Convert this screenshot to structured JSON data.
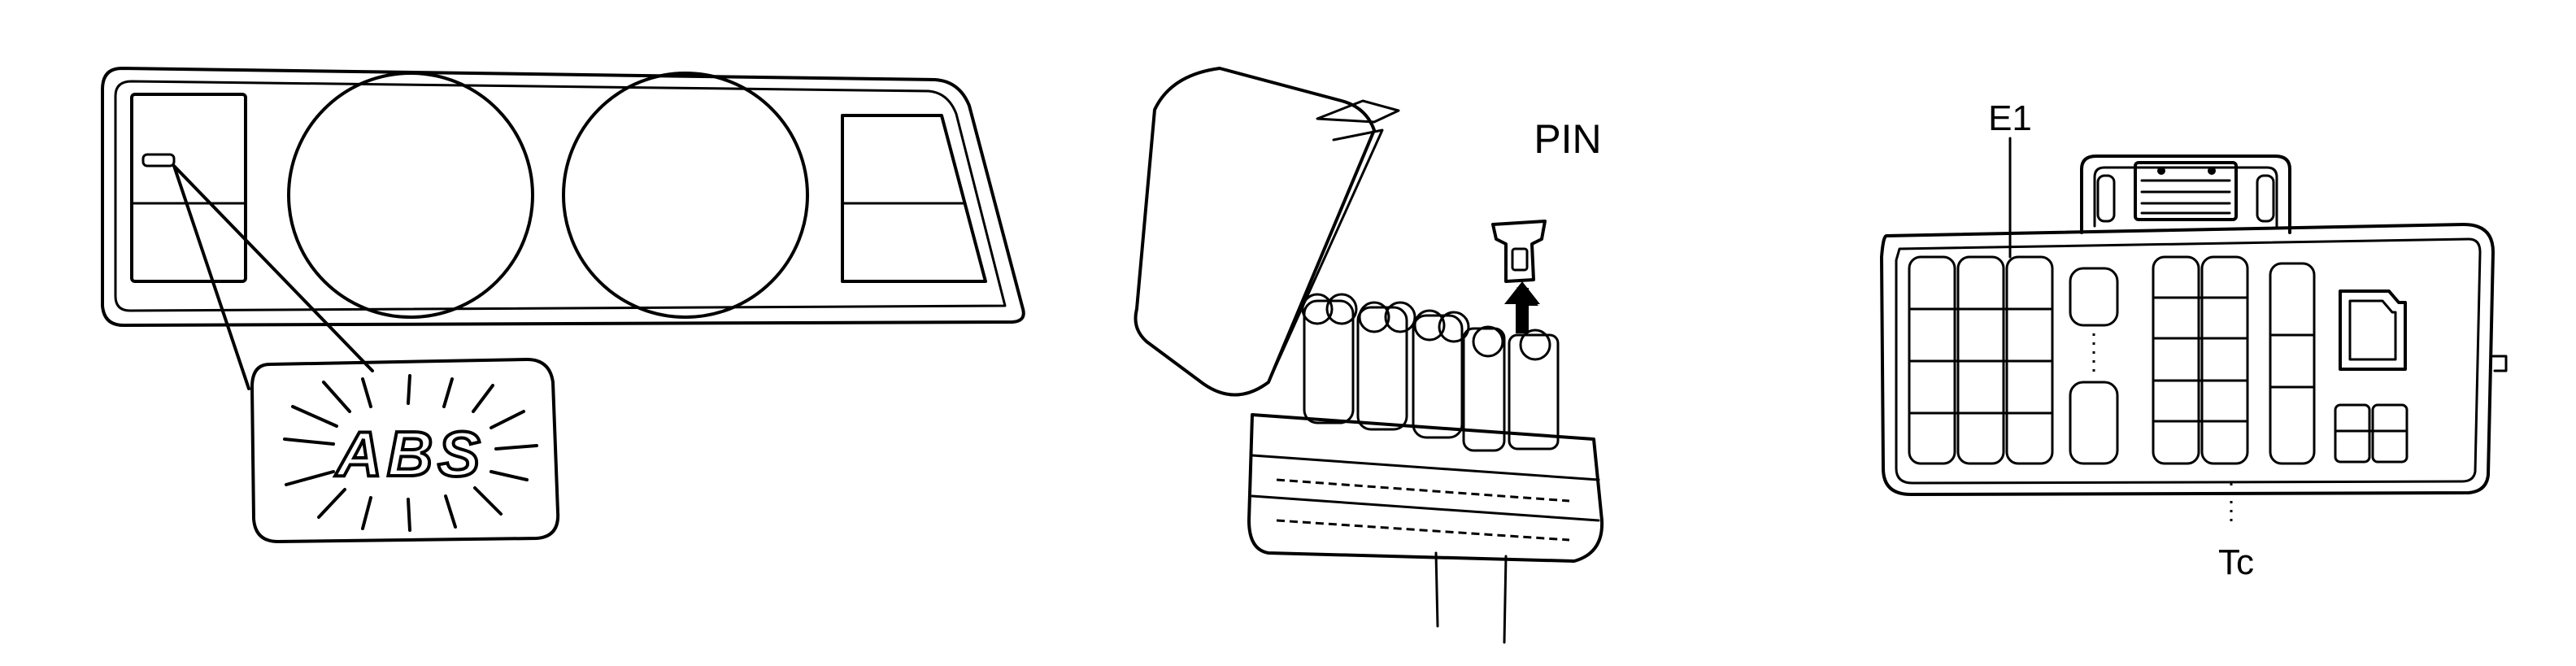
{
  "figure": {
    "panels": [
      {
        "id": "instrument-cluster",
        "warning_light_label": "ABS"
      },
      {
        "id": "relay-box",
        "pin_label": "PIN"
      },
      {
        "id": "check-connector",
        "terminal_top_label": "E1",
        "terminal_bottom_label": "Tc"
      }
    ]
  },
  "colors": {
    "line": "#000000",
    "background": "#ffffff"
  }
}
